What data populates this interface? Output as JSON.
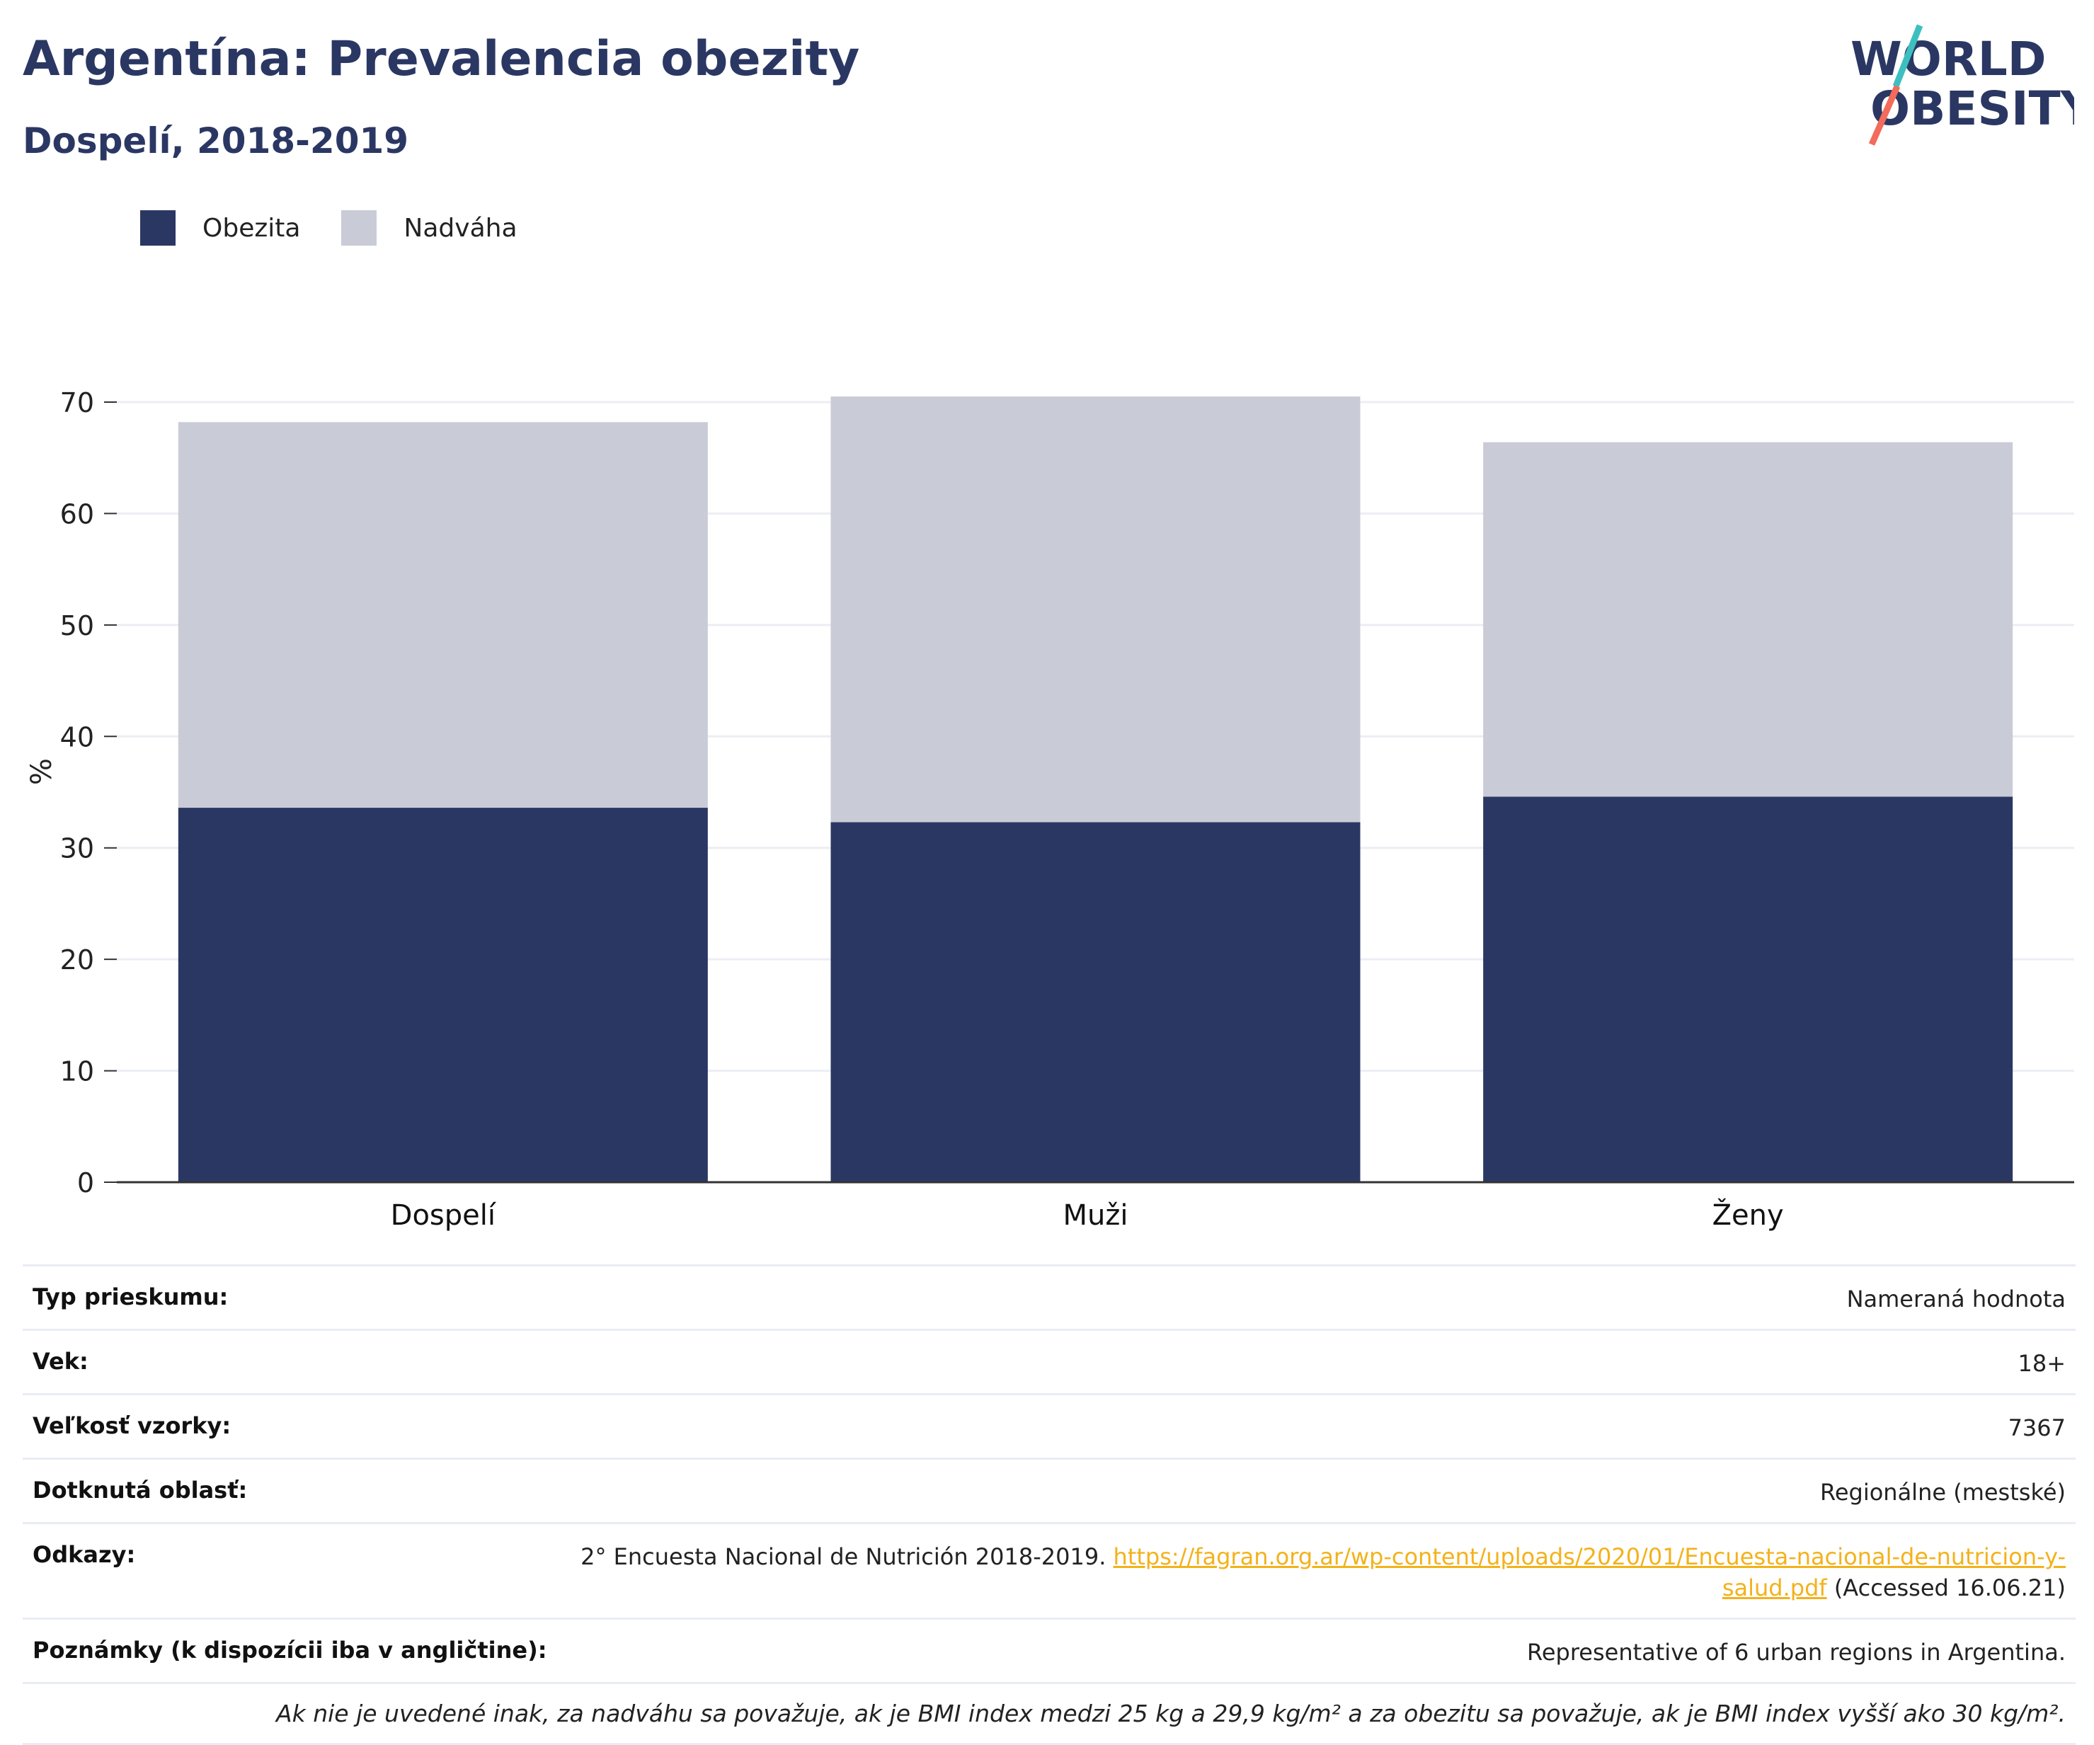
{
  "header": {
    "title": "Argentína: Prevalencia obezity",
    "subtitle": "Dospelí, 2018-2019"
  },
  "logo": {
    "line1": "WORLD",
    "line2": "OBESITY",
    "colors": {
      "text": "#2b3763",
      "slash_teal": "#3dbfbf",
      "slash_coral": "#f26b5b"
    }
  },
  "chart_data": {
    "type": "bar",
    "stacked": true,
    "categories": [
      "Dospelí",
      "Muži",
      "Ženy"
    ],
    "series": [
      {
        "name": "Obezita",
        "values": [
          33.6,
          32.3,
          34.6
        ],
        "color": "#2b3763"
      },
      {
        "name": "Nadváha",
        "values": [
          34.6,
          38.2,
          31.8
        ],
        "color": "#c9cbd7"
      }
    ],
    "xlabel": "",
    "ylabel": "%",
    "ylim": [
      0,
      70
    ],
    "yticks": [
      0,
      10,
      20,
      30,
      40,
      50,
      60,
      70
    ],
    "grid": true,
    "legend": "top-left"
  },
  "info": {
    "rows": [
      {
        "key": "Typ prieskumu:",
        "value": "Nameraná hodnota"
      },
      {
        "key": "Vek:",
        "value": "18+"
      },
      {
        "key": "Veľkosť vzorky:",
        "value": "7367"
      },
      {
        "key": "Dotknutá oblasť:",
        "value": "Regionálne (mestské)"
      }
    ],
    "references": {
      "key": "Odkazy:",
      "text_before": "2° Encuesta Nacional de Nutrición 2018-2019. ",
      "link": "https://fagran.org.ar/wp-content/uploads/2020/01/Encuesta-nacional-de-nutricion-y-salud.pdf",
      "text_after": " (Accessed 16.06.21)"
    },
    "notes": {
      "key": "Poznámky (k dispozícii iba v angličtine):",
      "value": "Representative of 6 urban regions in Argentina."
    },
    "footnote": "Ak nie je uvedené inak, za nadváhu sa považuje, ak je BMI index medzi 25 kg a 29,9 kg/m² a za obezitu sa považuje, ak je BMI index vyšší ako 30 kg/m²."
  }
}
